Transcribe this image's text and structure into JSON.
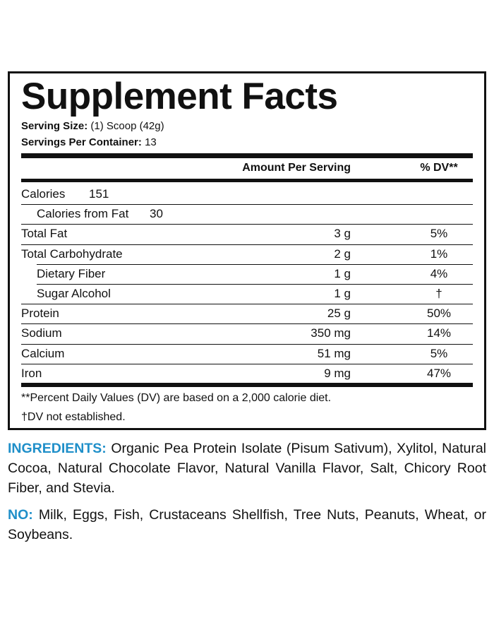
{
  "title": "Supplement Facts",
  "serving_size": {
    "label": "Serving Size:",
    "value": "(1) Scoop (42g)"
  },
  "servings_per_container": {
    "label": "Servings Per Container:",
    "value": "13"
  },
  "table": {
    "header": {
      "amount": "Amount Per Serving",
      "dv": "% DV**"
    },
    "calories": {
      "name": "Calories",
      "value": "151"
    },
    "calories_from_fat": {
      "name": "Calories from Fat",
      "value": "30"
    },
    "rows": [
      {
        "name": "Total Fat",
        "amount": "3 g",
        "dv": "5%",
        "indent": false
      },
      {
        "name": "Total Carbohydrate",
        "amount": "2 g",
        "dv": "1%",
        "indent": false
      },
      {
        "name": "Dietary Fiber",
        "amount": "1 g",
        "dv": "4%",
        "indent": true
      },
      {
        "name": "Sugar Alcohol",
        "amount": "1 g",
        "dv": "†",
        "indent": true
      },
      {
        "name": "Protein",
        "amount": "25 g",
        "dv": "50%",
        "indent": false
      },
      {
        "name": "Sodium",
        "amount": "350 mg",
        "dv": "14%",
        "indent": false
      },
      {
        "name": "Calcium",
        "amount": "51 mg",
        "dv": "5%",
        "indent": false
      },
      {
        "name": "Iron",
        "amount": "9 mg",
        "dv": "47%",
        "indent": false
      }
    ]
  },
  "footnotes": [
    "**Percent Daily Values (DV) are based on a 2,000 calorie diet.",
    "†DV not established."
  ],
  "ingredients": {
    "label": "INGREDIENTS:",
    "text": "Organic Pea Protein Isolate (Pisum Sativum), Xylitol, Natural Cocoa, Natural Chocolate Flavor, Natural Vanilla Flavor, Salt, Chicory Root Fiber, and Stevia."
  },
  "allergens": {
    "label": "NO:",
    "text": "Milk, Eggs, Fish, Crustaceans Shellfish, Tree Nuts, Peanuts, Wheat, or Soybeans."
  }
}
